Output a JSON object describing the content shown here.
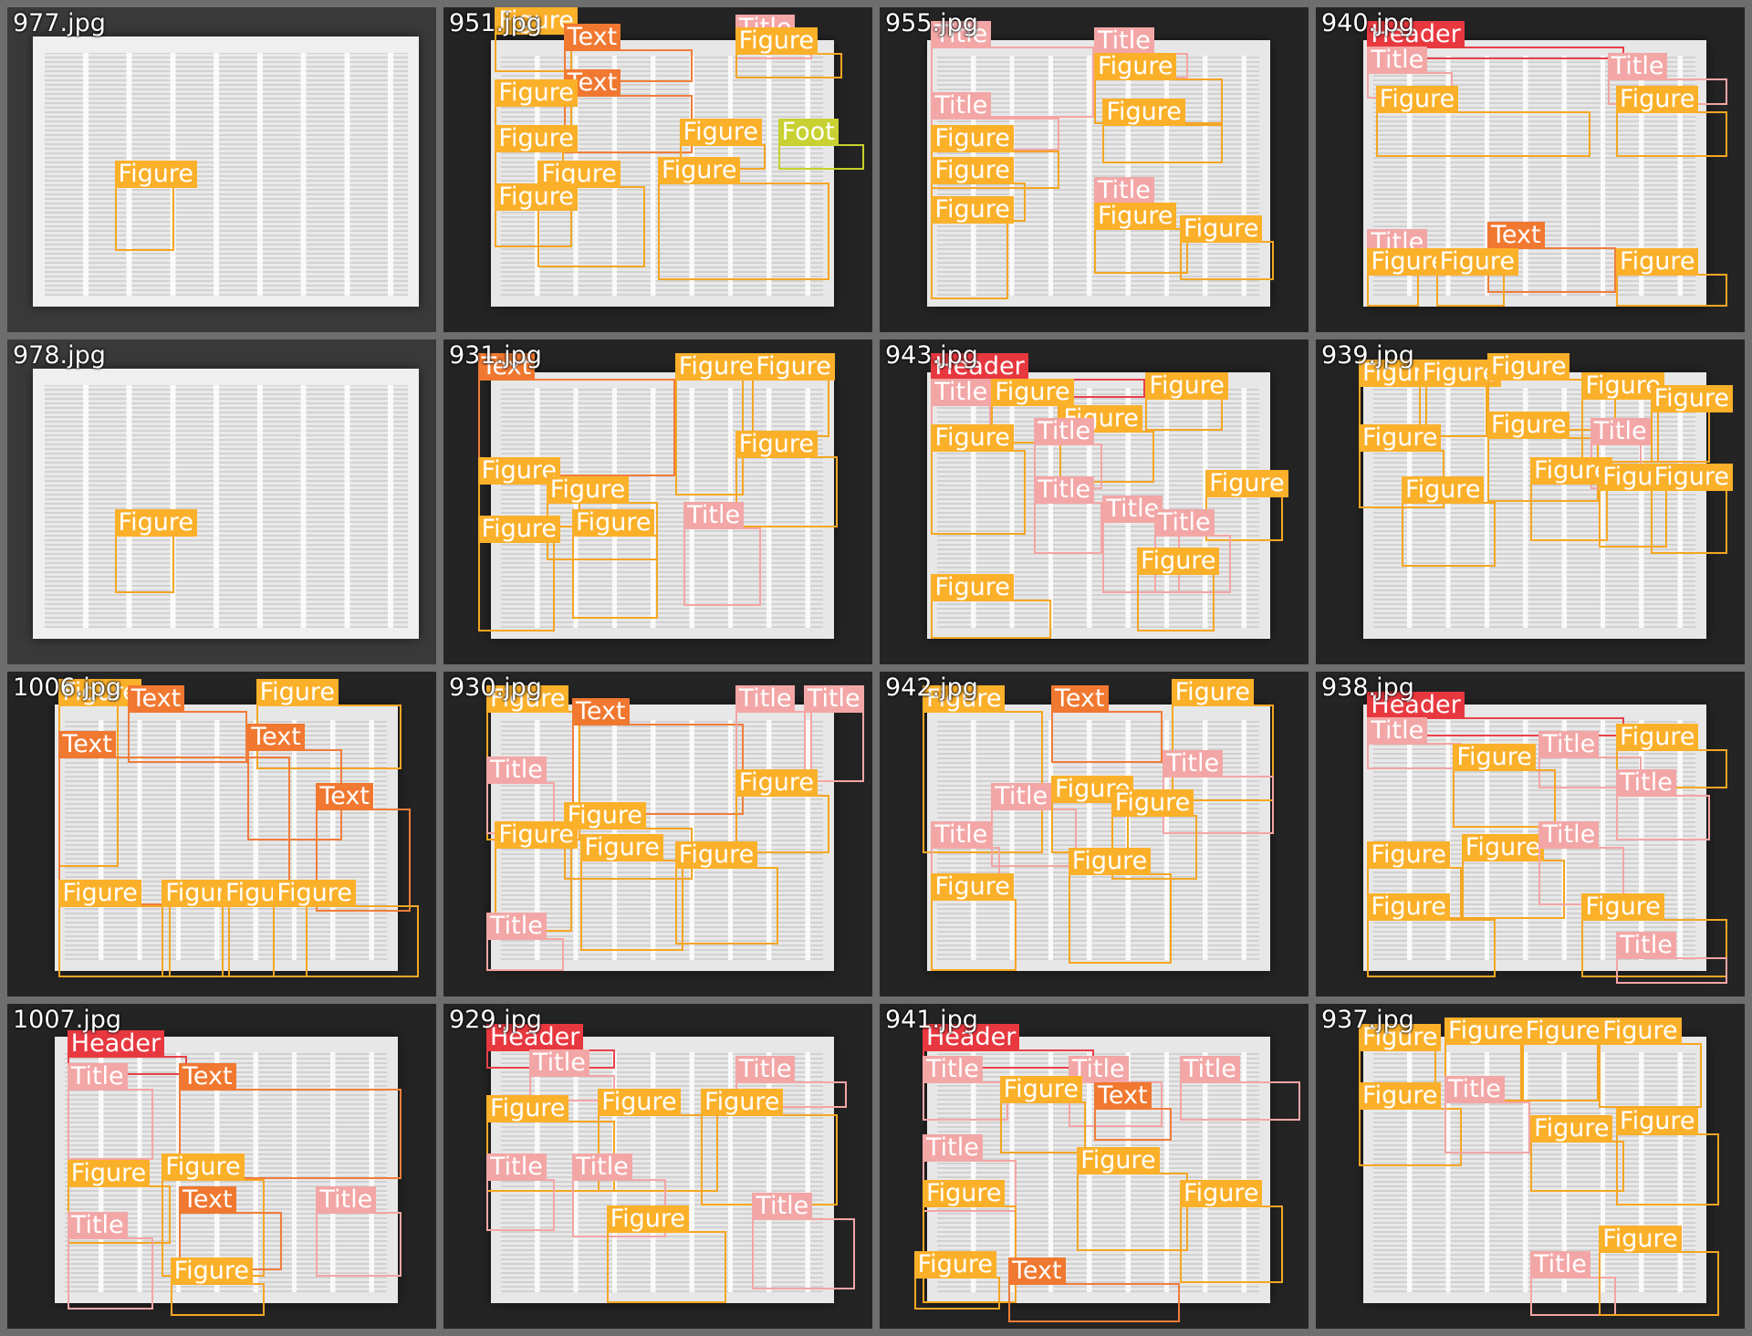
{
  "colors": {
    "figure": "#fbb02a",
    "title": "#f3a6a6",
    "text": "#f07830",
    "header": "#e8383f",
    "footer": "#c8d131"
  },
  "cells": [
    {
      "name": "977.jpg",
      "style": "wide",
      "boxes": [
        {
          "label": "Figure",
          "cls": "figure"
        }
      ]
    },
    {
      "name": "951.jpg",
      "boxes": [
        {
          "label": "Figure",
          "cls": "figure"
        },
        {
          "label": "Text",
          "cls": "text"
        },
        {
          "label": "Title",
          "cls": "title"
        },
        {
          "label": "Figure",
          "cls": "figure"
        },
        {
          "label": "Text",
          "cls": "text"
        },
        {
          "label": "Figure",
          "cls": "figure"
        },
        {
          "label": "Figure",
          "cls": "figure"
        },
        {
          "label": "Figure",
          "cls": "figure"
        },
        {
          "label": "Figure",
          "cls": "figure"
        },
        {
          "label": "Foot",
          "cls": "footer"
        },
        {
          "label": "Figure",
          "cls": "figure"
        },
        {
          "label": "Figure",
          "cls": "figure"
        }
      ]
    },
    {
      "name": "955.jpg",
      "boxes": [
        {
          "label": "Title",
          "cls": "title"
        },
        {
          "label": "Title",
          "cls": "title"
        },
        {
          "label": "Figure",
          "cls": "figure"
        },
        {
          "label": "Title",
          "cls": "title"
        },
        {
          "label": "Figure",
          "cls": "figure"
        },
        {
          "label": "Figure",
          "cls": "figure"
        },
        {
          "label": "Figure",
          "cls": "figure"
        },
        {
          "label": "Title",
          "cls": "title"
        },
        {
          "label": "Figure",
          "cls": "figure"
        },
        {
          "label": "Figure",
          "cls": "figure"
        },
        {
          "label": "Figure",
          "cls": "figure"
        }
      ]
    },
    {
      "name": "940.jpg",
      "boxes": [
        {
          "label": "Header",
          "cls": "header"
        },
        {
          "label": "Title",
          "cls": "title"
        },
        {
          "label": "Title",
          "cls": "title"
        },
        {
          "label": "Figure",
          "cls": "figure"
        },
        {
          "label": "Figure",
          "cls": "figure"
        },
        {
          "label": "Title",
          "cls": "title"
        },
        {
          "label": "Text",
          "cls": "text"
        },
        {
          "label": "Figure",
          "cls": "figure"
        },
        {
          "label": "Figure",
          "cls": "figure"
        },
        {
          "label": "Figure",
          "cls": "figure"
        }
      ]
    },
    {
      "name": "978.jpg",
      "style": "wide",
      "boxes": [
        {
          "label": "Figure",
          "cls": "figure"
        }
      ]
    },
    {
      "name": "931.jpg",
      "boxes": [
        {
          "label": "Text",
          "cls": "text"
        },
        {
          "label": "Figure",
          "cls": "figure"
        },
        {
          "label": "Figure",
          "cls": "figure"
        },
        {
          "label": "Figure",
          "cls": "figure"
        },
        {
          "label": "Figure",
          "cls": "figure"
        },
        {
          "label": "Figure",
          "cls": "figure"
        },
        {
          "label": "Title",
          "cls": "title"
        },
        {
          "label": "Figure",
          "cls": "figure"
        },
        {
          "label": "Figure",
          "cls": "figure"
        }
      ]
    },
    {
      "name": "943.jpg",
      "boxes": [
        {
          "label": "Header",
          "cls": "header"
        },
        {
          "label": "Title",
          "cls": "title"
        },
        {
          "label": "Figure",
          "cls": "figure"
        },
        {
          "label": "Figure",
          "cls": "figure"
        },
        {
          "label": "Figure",
          "cls": "figure"
        },
        {
          "label": "Title",
          "cls": "title"
        },
        {
          "label": "Figure",
          "cls": "figure"
        },
        {
          "label": "Title",
          "cls": "title"
        },
        {
          "label": "Figure",
          "cls": "figure"
        },
        {
          "label": "Title",
          "cls": "title"
        },
        {
          "label": "Title",
          "cls": "title"
        },
        {
          "label": "Figure",
          "cls": "figure"
        },
        {
          "label": "Figure",
          "cls": "figure"
        }
      ]
    },
    {
      "name": "939.jpg",
      "boxes": [
        {
          "label": "Figure",
          "cls": "figure"
        },
        {
          "label": "Figure",
          "cls": "figure"
        },
        {
          "label": "Figure",
          "cls": "figure"
        },
        {
          "label": "Figure",
          "cls": "figure"
        },
        {
          "label": "Figure",
          "cls": "figure"
        },
        {
          "label": "Figure",
          "cls": "figure"
        },
        {
          "label": "Figure",
          "cls": "figure"
        },
        {
          "label": "Title",
          "cls": "title"
        },
        {
          "label": "Figure",
          "cls": "figure"
        },
        {
          "label": "Figure",
          "cls": "figure"
        },
        {
          "label": "Figure",
          "cls": "figure"
        },
        {
          "label": "Figure",
          "cls": "figure"
        }
      ]
    },
    {
      "name": "1006.jpg",
      "boxes": [
        {
          "label": "Figure",
          "cls": "figure"
        },
        {
          "label": "Text",
          "cls": "text"
        },
        {
          "label": "Figure",
          "cls": "figure"
        },
        {
          "label": "Text",
          "cls": "text"
        },
        {
          "label": "Text",
          "cls": "text"
        },
        {
          "label": "Text",
          "cls": "text"
        },
        {
          "label": "Figure",
          "cls": "figure"
        },
        {
          "label": "Figure",
          "cls": "figure"
        },
        {
          "label": "Figure",
          "cls": "figure"
        },
        {
          "label": "Figure",
          "cls": "figure"
        }
      ]
    },
    {
      "name": "930.jpg",
      "boxes": [
        {
          "label": "Figure",
          "cls": "figure"
        },
        {
          "label": "Text",
          "cls": "text"
        },
        {
          "label": "Title",
          "cls": "title"
        },
        {
          "label": "Title",
          "cls": "title"
        },
        {
          "label": "Title",
          "cls": "title"
        },
        {
          "label": "Figure",
          "cls": "figure"
        },
        {
          "label": "Figure",
          "cls": "figure"
        },
        {
          "label": "Figure",
          "cls": "figure"
        },
        {
          "label": "Figure",
          "cls": "figure"
        },
        {
          "label": "Figure",
          "cls": "figure"
        },
        {
          "label": "Title",
          "cls": "title"
        }
      ]
    },
    {
      "name": "942.jpg",
      "boxes": [
        {
          "label": "Figure",
          "cls": "figure"
        },
        {
          "label": "Text",
          "cls": "text"
        },
        {
          "label": "Figure",
          "cls": "figure"
        },
        {
          "label": "Title",
          "cls": "title"
        },
        {
          "label": "Title",
          "cls": "title"
        },
        {
          "label": "Figure",
          "cls": "figure"
        },
        {
          "label": "Figure",
          "cls": "figure"
        },
        {
          "label": "Title",
          "cls": "title"
        },
        {
          "label": "Figure",
          "cls": "figure"
        },
        {
          "label": "Figure",
          "cls": "figure"
        }
      ]
    },
    {
      "name": "938.jpg",
      "boxes": [
        {
          "label": "Header",
          "cls": "header"
        },
        {
          "label": "Title",
          "cls": "title"
        },
        {
          "label": "Title",
          "cls": "title"
        },
        {
          "label": "Figure",
          "cls": "figure"
        },
        {
          "label": "Figure",
          "cls": "figure"
        },
        {
          "label": "Title",
          "cls": "title"
        },
        {
          "label": "Figure",
          "cls": "figure"
        },
        {
          "label": "Figure",
          "cls": "figure"
        },
        {
          "label": "Title",
          "cls": "title"
        },
        {
          "label": "Figure",
          "cls": "figure"
        },
        {
          "label": "Figure",
          "cls": "figure"
        },
        {
          "label": "Title",
          "cls": "title"
        }
      ]
    },
    {
      "name": "1007.jpg",
      "boxes": [
        {
          "label": "Header",
          "cls": "header"
        },
        {
          "label": "Title",
          "cls": "title"
        },
        {
          "label": "Text",
          "cls": "text"
        },
        {
          "label": "Figure",
          "cls": "figure"
        },
        {
          "label": "Figure",
          "cls": "figure"
        },
        {
          "label": "Text",
          "cls": "text"
        },
        {
          "label": "Title",
          "cls": "title"
        },
        {
          "label": "Title",
          "cls": "title"
        },
        {
          "label": "Figure",
          "cls": "figure"
        }
      ]
    },
    {
      "name": "929.jpg",
      "boxes": [
        {
          "label": "Header",
          "cls": "header"
        },
        {
          "label": "Title",
          "cls": "title"
        },
        {
          "label": "Title",
          "cls": "title"
        },
        {
          "label": "Figure",
          "cls": "figure"
        },
        {
          "label": "Figure",
          "cls": "figure"
        },
        {
          "label": "Figure",
          "cls": "figure"
        },
        {
          "label": "Title",
          "cls": "title"
        },
        {
          "label": "Title",
          "cls": "title"
        },
        {
          "label": "Title",
          "cls": "title"
        },
        {
          "label": "Figure",
          "cls": "figure"
        }
      ]
    },
    {
      "name": "941.jpg",
      "boxes": [
        {
          "label": "Header",
          "cls": "header"
        },
        {
          "label": "Title",
          "cls": "title"
        },
        {
          "label": "Title",
          "cls": "title"
        },
        {
          "label": "Figure",
          "cls": "figure"
        },
        {
          "label": "Text",
          "cls": "text"
        },
        {
          "label": "Title",
          "cls": "title"
        },
        {
          "label": "Title",
          "cls": "title"
        },
        {
          "label": "Figure",
          "cls": "figure"
        },
        {
          "label": "Figure",
          "cls": "figure"
        },
        {
          "label": "Figure",
          "cls": "figure"
        },
        {
          "label": "Text",
          "cls": "text"
        },
        {
          "label": "Figure",
          "cls": "figure"
        }
      ]
    },
    {
      "name": "937.jpg",
      "boxes": [
        {
          "label": "Figure",
          "cls": "figure"
        },
        {
          "label": "Figure",
          "cls": "figure"
        },
        {
          "label": "Figure",
          "cls": "figure"
        },
        {
          "label": "Figure",
          "cls": "figure"
        },
        {
          "label": "Figure",
          "cls": "figure"
        },
        {
          "label": "Title",
          "cls": "title"
        },
        {
          "label": "Figure",
          "cls": "figure"
        },
        {
          "label": "Figure",
          "cls": "figure"
        },
        {
          "label": "Title",
          "cls": "title"
        },
        {
          "label": "Figure",
          "cls": "figure"
        }
      ]
    }
  ]
}
